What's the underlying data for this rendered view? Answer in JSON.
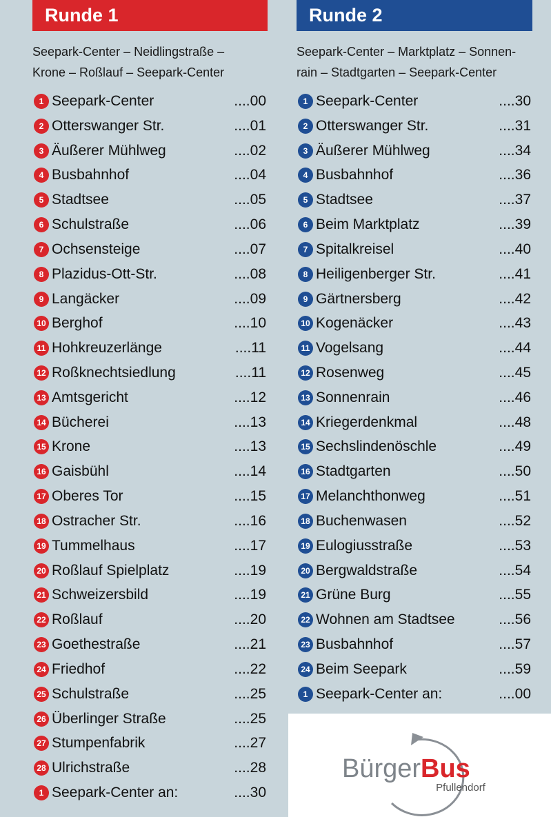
{
  "columns": [
    {
      "title": "Runde 1",
      "route": [
        "Seepark-Center – Neidlingstraße –",
        "Krone – Roßlauf – Seepark-Center"
      ],
      "stops": [
        {
          "number": "1",
          "name": "Seepark-Center",
          "time": "....00"
        },
        {
          "number": "2",
          "name": "Otterswanger Str.",
          "time": "....01"
        },
        {
          "number": "3",
          "name": "Äußerer Mühlweg",
          "time": "....02"
        },
        {
          "number": "4",
          "name": "Busbahnhof",
          "time": "....04"
        },
        {
          "number": "5",
          "name": "Stadtsee",
          "time": "....05"
        },
        {
          "number": "6",
          "name": "Schulstraße",
          "time": "....06"
        },
        {
          "number": "7",
          "name": "Ochsensteige",
          "time": "....07"
        },
        {
          "number": "8",
          "name": "Plazidus-Ott-Str.",
          "time": "....08"
        },
        {
          "number": "9",
          "name": "Langäcker",
          "time": "....09"
        },
        {
          "number": "10",
          "name": "Berghof",
          "time": "....10"
        },
        {
          "number": "11",
          "name": "Hohkreuzerlänge",
          "time": "....11"
        },
        {
          "number": "12",
          "name": "Roßknechtsiedlung",
          "time": "....11"
        },
        {
          "number": "13",
          "name": "Amtsgericht",
          "time": "....12"
        },
        {
          "number": "14",
          "name": "Bücherei",
          "time": "....13"
        },
        {
          "number": "15",
          "name": "Krone",
          "time": "....13"
        },
        {
          "number": "16",
          "name": "Gaisbühl",
          "time": "....14"
        },
        {
          "number": "17",
          "name": "Oberes Tor",
          "time": "....15"
        },
        {
          "number": "18",
          "name": "Ostracher Str.",
          "time": "....16"
        },
        {
          "number": "19",
          "name": "Tummelhaus",
          "time": "....17"
        },
        {
          "number": "20",
          "name": "Roßlauf Spielplatz",
          "time": "....19"
        },
        {
          "number": "21",
          "name": "Schweizersbild",
          "time": "....19"
        },
        {
          "number": "22",
          "name": "Roßlauf",
          "time": "....20"
        },
        {
          "number": "23",
          "name": "Goethestraße",
          "time": "....21"
        },
        {
          "number": "24",
          "name": "Friedhof",
          "time": "....22"
        },
        {
          "number": "25",
          "name": "Schulstraße",
          "time": "....25"
        },
        {
          "number": "26",
          "name": "Überlinger Straße",
          "time": "....25"
        },
        {
          "number": "27",
          "name": "Stumpenfabrik",
          "time": "....27"
        },
        {
          "number": "28",
          "name": "Ulrichstraße",
          "time": "....28"
        },
        {
          "number": "1",
          "name": "Seepark-Center an:",
          "time": "....30"
        }
      ]
    },
    {
      "title": "Runde 2",
      "route": [
        "Seepark-Center – Marktplatz – Sonnen-",
        "rain – Stadtgarten – Seepark-Center"
      ],
      "stops": [
        {
          "number": "1",
          "name": "Seepark-Center",
          "time": "....30"
        },
        {
          "number": "2",
          "name": "Otterswanger Str.",
          "time": "....31"
        },
        {
          "number": "3",
          "name": "Äußerer Mühlweg",
          "time": "....34"
        },
        {
          "number": "4",
          "name": "Busbahnhof",
          "time": "....36"
        },
        {
          "number": "5",
          "name": "Stadtsee",
          "time": "....37"
        },
        {
          "number": "6",
          "name": "Beim Marktplatz",
          "time": "....39"
        },
        {
          "number": "7",
          "name": "Spitalkreisel",
          "time": "....40"
        },
        {
          "number": "8",
          "name": "Heiligenberger Str.",
          "time": "....41"
        },
        {
          "number": "9",
          "name": "Gärtnersberg",
          "time": "....42"
        },
        {
          "number": "10",
          "name": "Kogenäcker",
          "time": "....43"
        },
        {
          "number": "11",
          "name": "Vogelsang",
          "time": "....44"
        },
        {
          "number": "12",
          "name": "Rosenweg",
          "time": "....45"
        },
        {
          "number": "13",
          "name": "Sonnenrain",
          "time": "....46"
        },
        {
          "number": "14",
          "name": "Kriegerdenkmal",
          "time": "....48"
        },
        {
          "number": "15",
          "name": "Sechslindenöschle",
          "time": "....49"
        },
        {
          "number": "16",
          "name": "Stadtgarten",
          "time": "....50"
        },
        {
          "number": "17",
          "name": "Melanchthonweg",
          "time": "....51"
        },
        {
          "number": "18",
          "name": "Buchenwasen",
          "time": "....52"
        },
        {
          "number": "19",
          "name": "Eulogiusstraße",
          "time": "....53"
        },
        {
          "number": "20",
          "name": "Bergwaldstraße",
          "time": "....54"
        },
        {
          "number": "21",
          "name": "Grüne Burg",
          "time": "....55"
        },
        {
          "number": "22",
          "name": "Wohnen am Stadtsee",
          "time": "....56"
        },
        {
          "number": "23",
          "name": "Busbahnhof",
          "time": "....57"
        },
        {
          "number": "24",
          "name": "Beim Seepark",
          "time": "....59"
        },
        {
          "number": "1",
          "name": "Seepark-Center an:",
          "time": "....00"
        }
      ]
    }
  ],
  "logo": {
    "word1": "Bürger",
    "word2": "Bus",
    "sub": "Pfullendorf"
  }
}
